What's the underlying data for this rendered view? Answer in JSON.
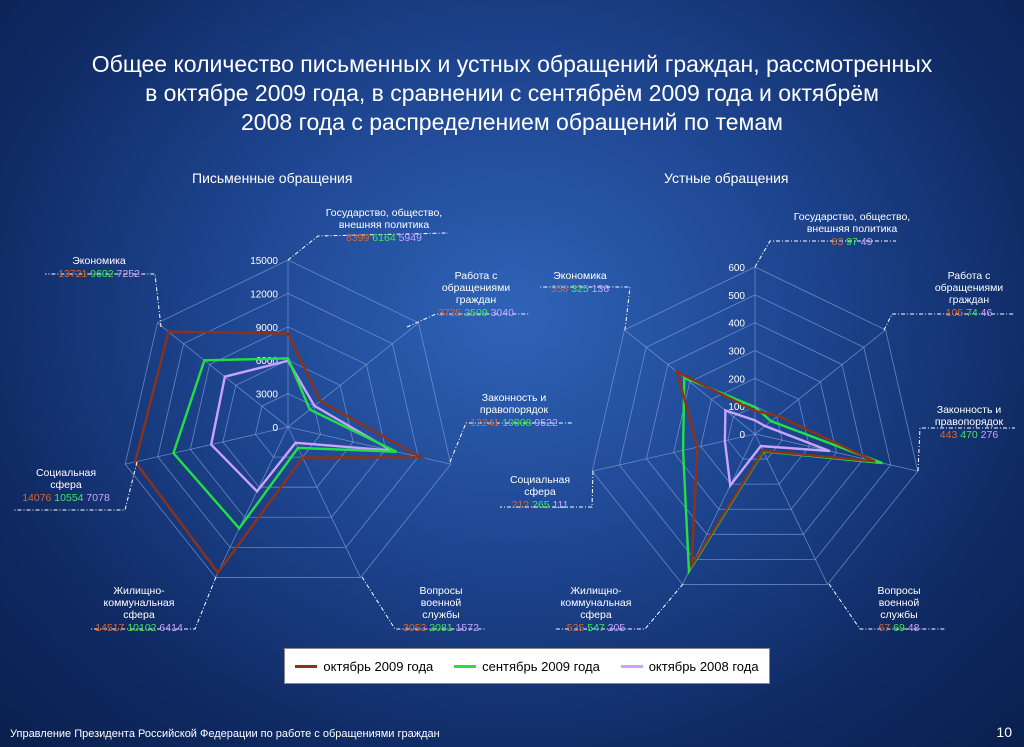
{
  "title": "Общее количество письменных и устных обращений граждан, рассмотренных\nв октябре 2009 года, в сравнении с сентябрём 2009 года и октябрём\n2008 года с распределением обращений по темам",
  "footer": "Управление Президента Российской Федерации по работе с обращениями граждан",
  "page_number": "10",
  "colors": {
    "oct2009": "#8b3218",
    "sep2009": "#22e044",
    "oct2008": "#c9a3ff"
  },
  "legend": [
    "октябрь 2009 года",
    "сентябрь 2009 года",
    "октябрь 2008 года"
  ],
  "chart_data": [
    {
      "type": "radar",
      "title": "Письменные обращения",
      "rlim": [
        0,
        15000
      ],
      "ticks": [
        "0",
        "3000",
        "6000",
        "9000",
        "12000",
        "15000"
      ],
      "tick_values": [
        0,
        3000,
        6000,
        9000,
        12000,
        15000
      ],
      "categories": [
        {
          "label": "Государство, общество,\nвнешняя политика",
          "values": [
            "8399",
            "6164",
            "5949"
          ]
        },
        {
          "label": "Работа с\nобращениями\nграждан",
          "values": [
            "3725",
            "2509",
            "3040"
          ]
        },
        {
          "label": "Законность и\nправопорядок",
          "values": [
            "12241",
            "10008",
            "9522"
          ]
        },
        {
          "label": "Вопросы\nвоенной\nслужбы",
          "values": [
            "3053",
            "2081",
            "1572"
          ]
        },
        {
          "label": "Жилищно-\nкоммунальная\nсфера",
          "values": [
            "14517",
            "10102",
            "6414"
          ]
        },
        {
          "label": "Социальная\nсфера",
          "values": [
            "14076",
            "10554",
            "7078"
          ]
        },
        {
          "label": "Экономика",
          "values": [
            "13721",
            "9602",
            "7252"
          ]
        }
      ],
      "series": [
        {
          "name": "октябрь 2009 года",
          "values": [
            8399,
            3725,
            12241,
            3053,
            14517,
            14076,
            13721
          ]
        },
        {
          "name": "сентябрь 2009 года",
          "values": [
            6164,
            2509,
            10008,
            2081,
            10102,
            10554,
            9602
          ]
        },
        {
          "name": "октябрь 2008 года",
          "values": [
            5949,
            3040,
            9522,
            1572,
            6414,
            7078,
            7252
          ]
        }
      ]
    },
    {
      "type": "radar",
      "title": "Устные обращения",
      "rlim": [
        0,
        600
      ],
      "ticks": [
        "0",
        "100",
        "200",
        "300",
        "400",
        "500",
        "600"
      ],
      "tick_values": [
        0,
        100,
        200,
        300,
        400,
        500,
        600
      ],
      "categories": [
        {
          "label": "Государство, общество,\nвнешняя политика",
          "values": [
            "83",
            "97",
            "49"
          ]
        },
        {
          "label": "Работа с\nобращениями\nграждан",
          "values": [
            "105",
            "74",
            "46"
          ]
        },
        {
          "label": "Законность и\nправопорядок",
          "values": [
            "443",
            "470",
            "276"
          ]
        },
        {
          "label": "Вопросы\nвоенной\nслужбы",
          "values": [
            "67",
            "69",
            "48"
          ]
        },
        {
          "label": "Жилищно-\nкоммунальная\nсфера",
          "values": [
            "525",
            "547",
            "205"
          ]
        },
        {
          "label": "Социальная\nсфера",
          "values": [
            "212",
            "265",
            "111"
          ]
        },
        {
          "label": "Экономика",
          "values": [
            "358",
            "325",
            "136"
          ]
        }
      ],
      "series": [
        {
          "name": "октябрь 2009 года",
          "values": [
            83,
            105,
            443,
            67,
            525,
            212,
            358
          ]
        },
        {
          "name": "сентябрь 2009 года",
          "values": [
            97,
            74,
            470,
            69,
            547,
            265,
            325
          ]
        },
        {
          "name": "октябрь 2008 года",
          "values": [
            49,
            46,
            276,
            48,
            205,
            111,
            136
          ]
        }
      ]
    }
  ]
}
